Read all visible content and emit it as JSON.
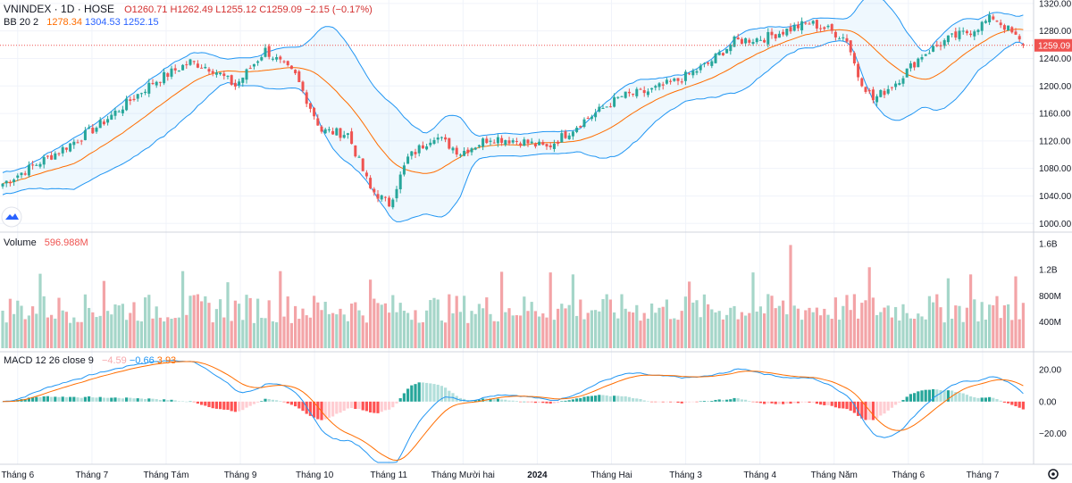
{
  "header": {
    "symbol": "VNINDEX",
    "interval": "1D",
    "exchange": "HOSE",
    "ohlc": {
      "o": "O1260.71",
      "h": "H1262.49",
      "l": "L1255.12",
      "c": "C1259.09",
      "chg": "−2.15 (−0.17%)"
    }
  },
  "bb": {
    "label": "BB 20 2",
    "basis": "1278.34",
    "upper": "1304.53",
    "lower": "1252.15"
  },
  "volume": {
    "label": "Volume",
    "value": "596.988M"
  },
  "macd": {
    "label": "MACD 12 26 close 9",
    "hist": "−4.59",
    "macd": "−0.66",
    "signal": "3.93"
  },
  "last_price_label": "1259.09",
  "colors": {
    "up": "#26a69a",
    "down": "#ef5350",
    "band": "#2962ff",
    "basis": "#ff6d00",
    "vol_up": "#a5d6c9",
    "vol_down": "#f3a4a7"
  },
  "chart_data": [
    {
      "type": "candlestick",
      "title": "VNINDEX 1D HOSE",
      "ylim": [
        990,
        1325
      ],
      "yticks": [
        "1000.00",
        "1040.00",
        "1080.00",
        "1120.00",
        "1160.00",
        "1200.00",
        "1240.00",
        "1280.00",
        "1320.00"
      ],
      "x_ticks": [
        "Tháng 6",
        "Tháng 7",
        "Tháng Tám",
        "Tháng 9",
        "Tháng 10",
        "Tháng 11",
        "Tháng Mười hai",
        "2024",
        "Tháng Hai",
        "Tháng 3",
        "Tháng 4",
        "Tháng Năm",
        "Tháng 6",
        "Tháng 7"
      ],
      "close_anchors": [
        [
          0,
          1058
        ],
        [
          15,
          1105
        ],
        [
          25,
          1140
        ],
        [
          40,
          1205
        ],
        [
          50,
          1235
        ],
        [
          56,
          1225
        ],
        [
          62,
          1200
        ],
        [
          70,
          1252
        ],
        [
          78,
          1215
        ],
        [
          85,
          1135
        ],
        [
          92,
          1130
        ],
        [
          98,
          1050
        ],
        [
          103,
          1028
        ],
        [
          108,
          1095
        ],
        [
          115,
          1128
        ],
        [
          122,
          1103
        ],
        [
          130,
          1125
        ],
        [
          138,
          1120
        ],
        [
          145,
          1110
        ],
        [
          155,
          1150
        ],
        [
          165,
          1185
        ],
        [
          172,
          1192
        ],
        [
          180,
          1208
        ],
        [
          188,
          1232
        ],
        [
          195,
          1265
        ],
        [
          203,
          1270
        ],
        [
          210,
          1283
        ],
        [
          215,
          1292
        ],
        [
          220,
          1282
        ],
        [
          225,
          1268
        ],
        [
          228,
          1215
        ],
        [
          232,
          1180
        ],
        [
          238,
          1205
        ],
        [
          245,
          1245
        ],
        [
          252,
          1268
        ],
        [
          258,
          1280
        ],
        [
          264,
          1300
        ],
        [
          268,
          1282
        ],
        [
          272,
          1259
        ]
      ],
      "last": {
        "open": 1260.71,
        "high": 1262.49,
        "low": 1255.12,
        "close": 1259.09
      }
    },
    {
      "type": "bar",
      "title": "Volume",
      "ylim": [
        0,
        1750
      ],
      "yticks": [
        "400M",
        "800M",
        "1.2B",
        "1.6B"
      ],
      "avg_level": 640,
      "spikes": [
        [
          10,
          1140
        ],
        [
          27,
          1030
        ],
        [
          48,
          1180
        ],
        [
          60,
          1010
        ],
        [
          74,
          1180
        ],
        [
          98,
          1050
        ],
        [
          133,
          1170
        ],
        [
          146,
          1160
        ],
        [
          152,
          1130
        ],
        [
          183,
          1020
        ],
        [
          200,
          1160
        ],
        [
          210,
          1580
        ],
        [
          231,
          1240
        ],
        [
          252,
          1070
        ],
        [
          258,
          1130
        ],
        [
          270,
          1100
        ]
      ]
    },
    {
      "type": "line",
      "title": "MACD 12 26 close 9",
      "ylim": [
        -38,
        30
      ],
      "yticks": [
        "20.00",
        "0.00",
        "−20.00"
      ]
    }
  ]
}
